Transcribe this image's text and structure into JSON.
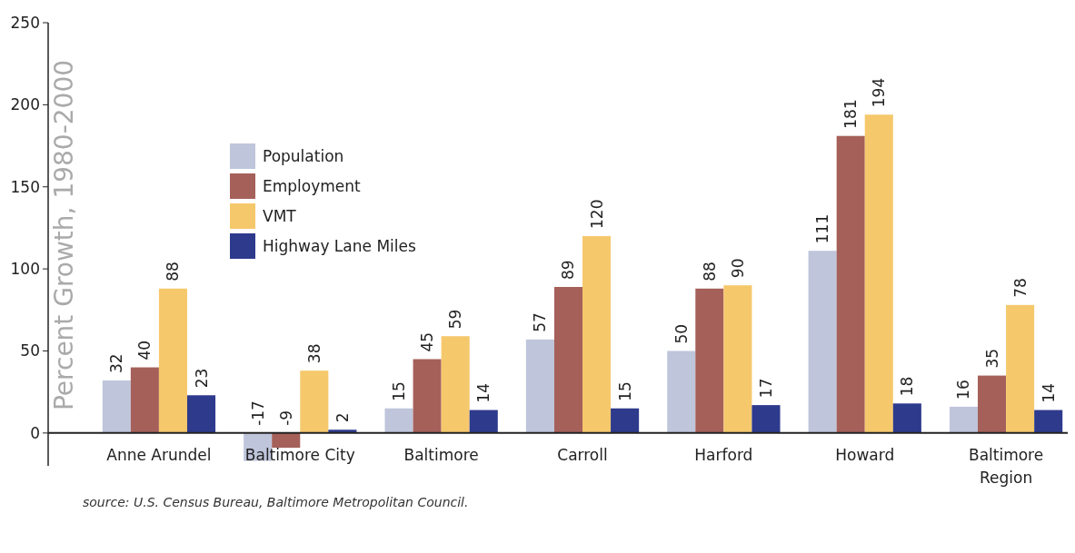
{
  "chart_data": {
    "type": "bar",
    "ylabel": "Percent Growth, 1980-2000",
    "categories": [
      "Anne Arundel",
      "Baltimore City",
      "Baltimore",
      "Carroll",
      "Harford",
      "Howard",
      "Baltimore\nRegion"
    ],
    "series": [
      {
        "name": "Population",
        "color": "#bfc5db",
        "values": [
          32,
          -17,
          15,
          57,
          50,
          111,
          16
        ]
      },
      {
        "name": "Employment",
        "color": "#a5605a",
        "values": [
          40,
          -9,
          45,
          89,
          88,
          181,
          35
        ]
      },
      {
        "name": "VMT",
        "color": "#f6c86c",
        "values": [
          88,
          38,
          59,
          120,
          90,
          194,
          78
        ]
      },
      {
        "name": "Highway Lane Miles",
        "color": "#2e3a8c",
        "values": [
          23,
          2,
          14,
          15,
          17,
          18,
          14
        ]
      }
    ],
    "ylim": [
      -20,
      250
    ],
    "yticks": [
      0,
      50,
      100,
      150,
      200,
      250
    ],
    "grid": false,
    "legend": "top left",
    "data_labels": true,
    "annotations": [
      "source: U.S. Census Bureau, Baltimore Metropolitan Council."
    ]
  }
}
